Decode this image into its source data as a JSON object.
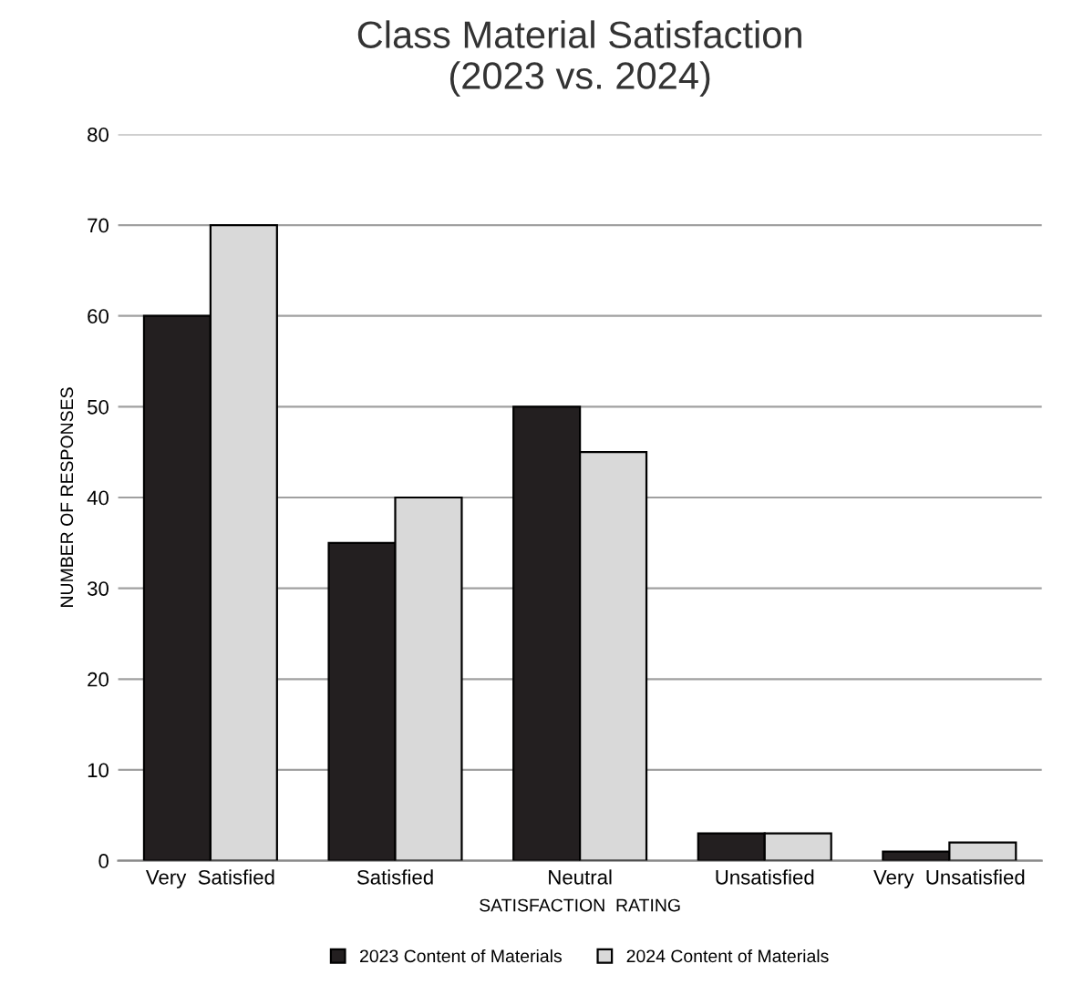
{
  "chart_data": {
    "type": "bar",
    "title": "Class Material Satisfaction\n(2023 vs. 2024)",
    "xlabel": "SATISFACTION  RATING",
    "ylabel": "NUMBER OF RESPONSES",
    "categories": [
      "Very  Satisfied",
      "Satisfied",
      "Neutral",
      "Unsatisfied",
      "Very  Unsatisfied"
    ],
    "series": [
      {
        "name": "2023 Content of Materials",
        "color": "#231f20",
        "values": [
          60,
          35,
          50,
          3,
          1
        ]
      },
      {
        "name": "2024 Content of Materials",
        "color": "#d9d9d9",
        "values": [
          70,
          40,
          45,
          3,
          2
        ]
      }
    ],
    "ylim": [
      0,
      80
    ],
    "yticks": [
      0,
      10,
      20,
      30,
      40,
      50,
      60,
      70,
      80
    ],
    "grid": "y",
    "legend": "bottom"
  }
}
